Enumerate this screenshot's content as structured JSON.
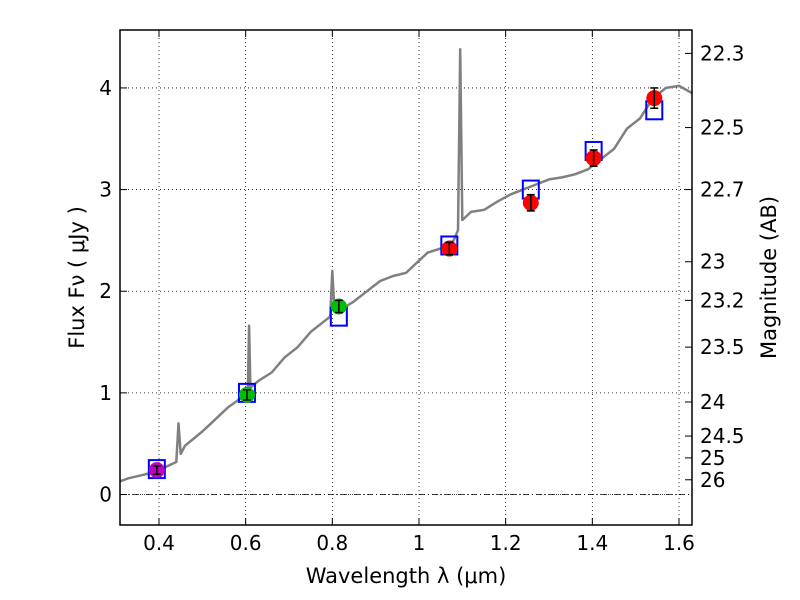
{
  "chart_data": {
    "type": "scatter",
    "title": "",
    "xlabel": "Wavelength  λ (μm)",
    "ylabel": "Flux  Fν  ( μJy )",
    "y2label": "Magnitude (AB)",
    "xlim": [
      0.31,
      1.63
    ],
    "ylim": [
      -0.3,
      4.57
    ],
    "grid": true,
    "x_ticks": [
      0.4,
      0.6,
      0.8,
      1.0,
      1.2,
      1.4,
      1.6
    ],
    "x_tick_labels": [
      "0.4",
      "0.6",
      "0.8",
      "1",
      "1.2",
      "1.4",
      "1.6"
    ],
    "y_ticks": [
      0,
      1,
      2,
      3,
      4
    ],
    "y_tick_labels": [
      "0",
      "1",
      "2",
      "3",
      "4"
    ],
    "y2_ticks": [
      {
        "label": "22.3",
        "flux": 4.34
      },
      {
        "label": "22.5",
        "flux": 3.61
      },
      {
        "label": "22.7",
        "flux": 3.0
      },
      {
        "label": "23",
        "flux": 2.29
      },
      {
        "label": "23.2",
        "flux": 1.91
      },
      {
        "label": "23.5",
        "flux": 1.45
      },
      {
        "label": "24",
        "flux": 0.91
      },
      {
        "label": "24.5",
        "flux": 0.575
      },
      {
        "label": "25",
        "flux": 0.36
      },
      {
        "label": "26",
        "flux": 0.145
      }
    ],
    "colors": {
      "spectrum": "#808080",
      "model_box": "#0000ff",
      "purple": "#bf00bf",
      "green": "#00bf00",
      "red": "#ff0000",
      "errorbar": "#000000",
      "zero_line": "#000000"
    },
    "spectrum": [
      [
        0.31,
        0.13
      ],
      [
        0.33,
        0.16
      ],
      [
        0.35,
        0.18
      ],
      [
        0.37,
        0.2
      ],
      [
        0.39,
        0.22
      ],
      [
        0.41,
        0.26
      ],
      [
        0.43,
        0.3
      ],
      [
        0.44,
        0.32
      ],
      [
        0.445,
        0.7
      ],
      [
        0.45,
        0.4
      ],
      [
        0.46,
        0.48
      ],
      [
        0.48,
        0.55
      ],
      [
        0.5,
        0.62
      ],
      [
        0.52,
        0.7
      ],
      [
        0.54,
        0.78
      ],
      [
        0.56,
        0.86
      ],
      [
        0.58,
        0.92
      ],
      [
        0.6,
        0.99
      ],
      [
        0.605,
        1.02
      ],
      [
        0.608,
        1.66
      ],
      [
        0.611,
        1.05
      ],
      [
        0.63,
        1.12
      ],
      [
        0.66,
        1.2
      ],
      [
        0.69,
        1.35
      ],
      [
        0.72,
        1.45
      ],
      [
        0.75,
        1.6
      ],
      [
        0.78,
        1.7
      ],
      [
        0.795,
        1.75
      ],
      [
        0.8,
        2.2
      ],
      [
        0.805,
        1.8
      ],
      [
        0.82,
        1.82
      ],
      [
        0.85,
        1.9
      ],
      [
        0.88,
        2.0
      ],
      [
        0.91,
        2.1
      ],
      [
        0.94,
        2.15
      ],
      [
        0.97,
        2.18
      ],
      [
        1.0,
        2.3
      ],
      [
        1.02,
        2.38
      ],
      [
        1.05,
        2.42
      ],
      [
        1.08,
        2.5
      ],
      [
        1.09,
        2.6
      ],
      [
        1.095,
        4.38
      ],
      [
        1.1,
        2.7
      ],
      [
        1.12,
        2.78
      ],
      [
        1.15,
        2.8
      ],
      [
        1.18,
        2.88
      ],
      [
        1.21,
        2.95
      ],
      [
        1.24,
        3.0
      ],
      [
        1.27,
        3.05
      ],
      [
        1.3,
        3.1
      ],
      [
        1.33,
        3.12
      ],
      [
        1.36,
        3.15
      ],
      [
        1.39,
        3.2
      ],
      [
        1.42,
        3.3
      ],
      [
        1.45,
        3.4
      ],
      [
        1.48,
        3.6
      ],
      [
        1.51,
        3.7
      ],
      [
        1.54,
        3.9
      ],
      [
        1.57,
        4.0
      ],
      [
        1.6,
        4.02
      ],
      [
        1.63,
        3.95
      ]
    ],
    "model_points": [
      {
        "x": 0.395,
        "y": 0.25
      },
      {
        "x": 0.603,
        "y": 1.0
      },
      {
        "x": 0.815,
        "y": 1.75
      },
      {
        "x": 1.07,
        "y": 2.45
      },
      {
        "x": 1.258,
        "y": 3.0
      },
      {
        "x": 1.403,
        "y": 3.38
      },
      {
        "x": 1.543,
        "y": 3.78
      }
    ],
    "observed_points": [
      {
        "x": 0.395,
        "y": 0.24,
        "err": 0.04,
        "color": "purple"
      },
      {
        "x": 0.603,
        "y": 0.98,
        "err": 0.05,
        "color": "green"
      },
      {
        "x": 0.815,
        "y": 1.85,
        "err": 0.06,
        "color": "green"
      },
      {
        "x": 1.07,
        "y": 2.42,
        "err": 0.06,
        "color": "red"
      },
      {
        "x": 1.258,
        "y": 2.87,
        "err": 0.08,
        "color": "red"
      },
      {
        "x": 1.403,
        "y": 3.31,
        "err": 0.08,
        "color": "red"
      },
      {
        "x": 1.543,
        "y": 3.9,
        "err": 0.1,
        "color": "red"
      }
    ]
  }
}
